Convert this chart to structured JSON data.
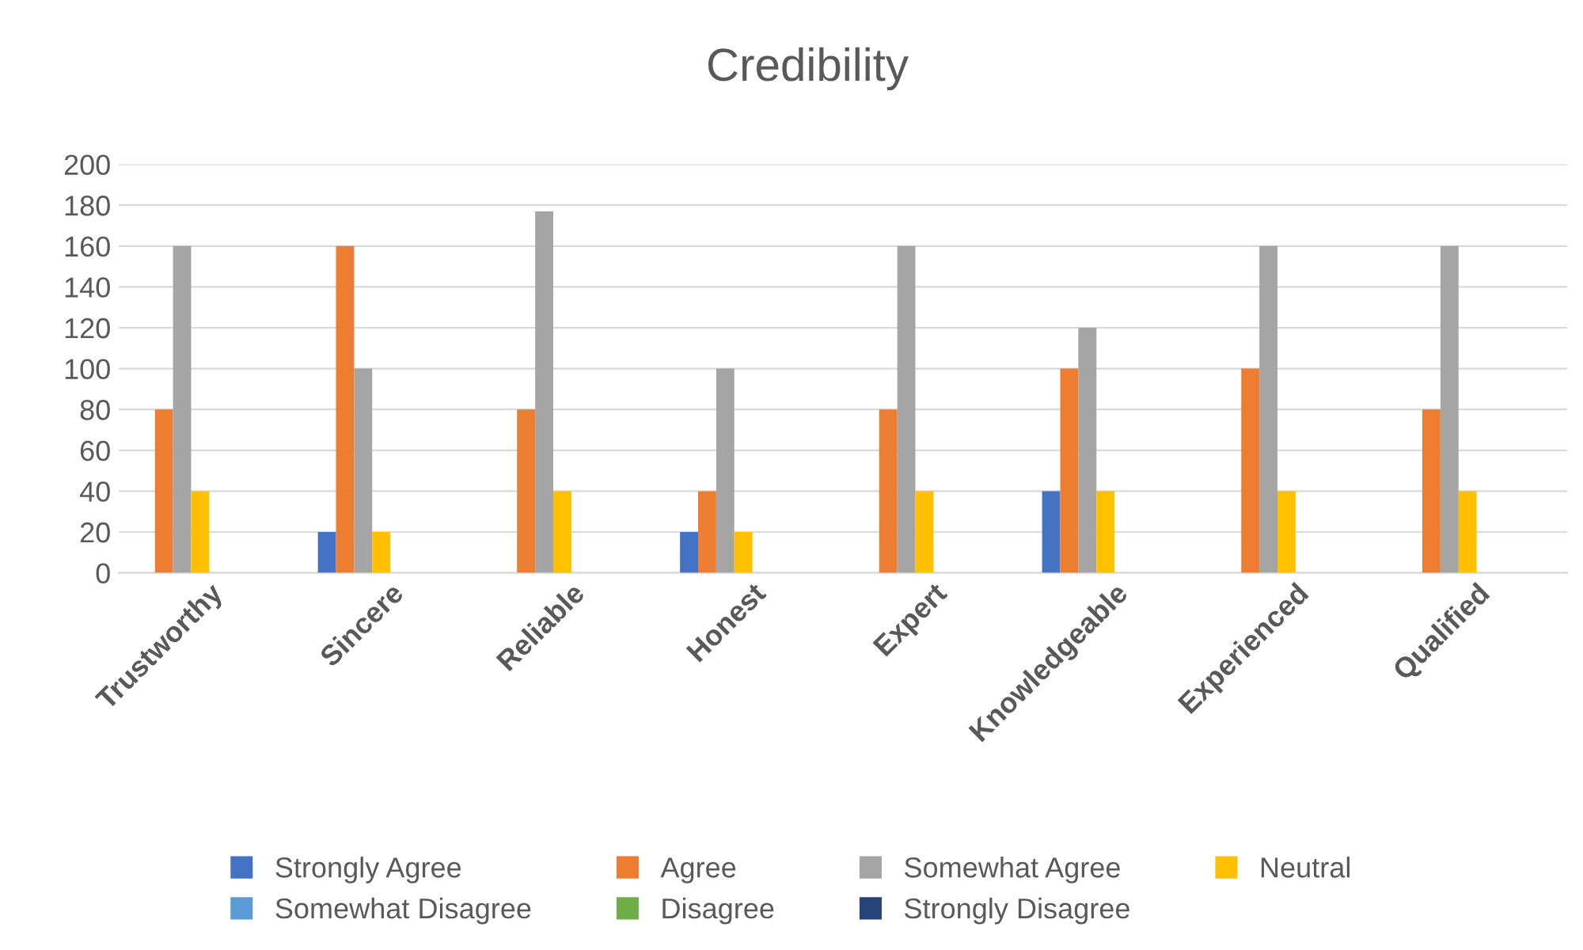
{
  "chart_data": {
    "type": "bar",
    "title": "Credibility",
    "categories": [
      "Trustworthy",
      "Sincere",
      "Reliable",
      "Honest",
      "Expert",
      "Knowledgeable",
      "Experienced",
      "Qualified"
    ],
    "series": [
      {
        "name": "Strongly Agree",
        "color": "#4472c4",
        "values": [
          0,
          20,
          0,
          20,
          0,
          40,
          0,
          0
        ]
      },
      {
        "name": "Agree",
        "color": "#ed7d31",
        "values": [
          80,
          160,
          80,
          40,
          80,
          100,
          100,
          80
        ]
      },
      {
        "name": "Somewhat Agree",
        "color": "#a5a5a5",
        "values": [
          160,
          100,
          177,
          100,
          160,
          120,
          160,
          160
        ]
      },
      {
        "name": "Neutral",
        "color": "#ffc000",
        "values": [
          40,
          20,
          40,
          20,
          40,
          40,
          40,
          40
        ]
      },
      {
        "name": "Somewhat Disagree",
        "color": "#5b9bd5",
        "values": [
          0,
          0,
          0,
          0,
          0,
          0,
          0,
          0
        ]
      },
      {
        "name": "Disagree",
        "color": "#70ad47",
        "values": [
          0,
          0,
          0,
          0,
          0,
          0,
          0,
          0
        ]
      },
      {
        "name": "Strongly Disagree",
        "color": "#264478",
        "values": [
          0,
          0,
          0,
          0,
          0,
          0,
          0,
          0
        ]
      }
    ],
    "ylim": [
      0,
      200
    ],
    "yticks": [
      0,
      20,
      40,
      60,
      80,
      100,
      120,
      140,
      160,
      180,
      200
    ],
    "grid": "y",
    "legend": "bottom"
  }
}
